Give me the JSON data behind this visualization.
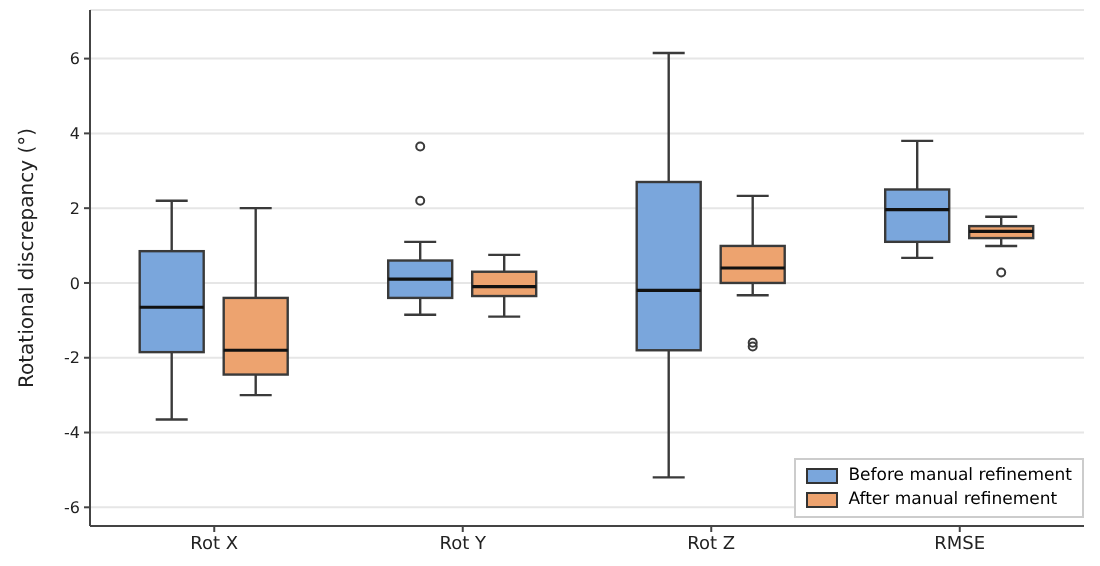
{
  "chart_data": {
    "type": "box",
    "ylabel": "Rotational discrepancy (°)",
    "categories": [
      "Rot X",
      "Rot Y",
      "Rot Z",
      "RMSE"
    ],
    "ylim": [
      -6.5,
      7.3
    ],
    "yticks": [
      -6,
      -4,
      -2,
      0,
      2,
      4,
      6
    ],
    "grid": "y",
    "legend": "bottom right",
    "marker": "circle",
    "series": [
      {
        "name": "Before manual refinement",
        "color": "#7aa6dc",
        "boxes": [
          {
            "low": -3.65,
            "q1": -1.85,
            "median": -0.65,
            "q3": 0.85,
            "high": 2.2
          },
          {
            "low": -0.85,
            "q1": -0.4,
            "median": 0.1,
            "q3": 0.6,
            "high": 1.1,
            "outliers": [
              2.2,
              3.65
            ]
          },
          {
            "low": -5.2,
            "q1": -1.8,
            "median": -0.2,
            "q3": 2.7,
            "high": 6.15
          },
          {
            "low": 0.67,
            "q1": 1.1,
            "median": 1.96,
            "q3": 2.5,
            "high": 3.8
          }
        ]
      },
      {
        "name": "After manual refinement",
        "color": "#eda36f",
        "boxes": [
          {
            "low": -3.0,
            "q1": -2.45,
            "median": -1.8,
            "q3": -0.4,
            "high": 2.0
          },
          {
            "low": -0.9,
            "q1": -0.35,
            "median": -0.1,
            "q3": 0.3,
            "high": 0.75
          },
          {
            "low": -0.33,
            "q1": 0.0,
            "median": 0.4,
            "q3": 0.99,
            "high": 2.33,
            "outliers": [
              -1.6,
              -1.7
            ]
          },
          {
            "low": 0.99,
            "q1": 1.2,
            "median": 1.38,
            "q3": 1.52,
            "high": 1.77,
            "outliers": [
              0.28
            ]
          }
        ]
      }
    ]
  }
}
